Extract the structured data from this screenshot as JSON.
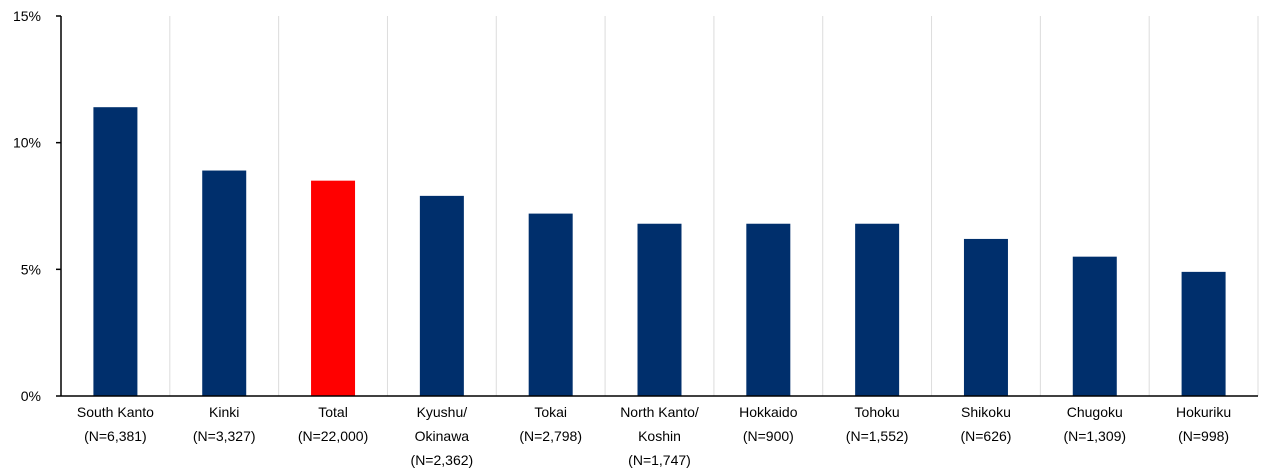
{
  "chart_data": {
    "type": "bar",
    "title": "",
    "xlabel": "",
    "ylabel": "",
    "ylim": [
      0,
      15
    ],
    "yticks": [
      {
        "value": 0,
        "label": "0%"
      },
      {
        "value": 5,
        "label": "5%"
      },
      {
        "value": 10,
        "label": "10%"
      },
      {
        "value": 15,
        "label": "15%"
      }
    ],
    "grid": "vertical category separators",
    "legend": "none",
    "categories": [
      {
        "label_lines": [
          "South Kanto",
          "(N=6,381)"
        ]
      },
      {
        "label_lines": [
          "Kinki",
          "(N=3,327)"
        ]
      },
      {
        "label_lines": [
          "Total",
          "(N=22,000)"
        ]
      },
      {
        "label_lines": [
          "Kyushu/",
          "Okinawa",
          "(N=2,362)"
        ]
      },
      {
        "label_lines": [
          "Tokai",
          "(N=2,798)"
        ]
      },
      {
        "label_lines": [
          "North Kanto/",
          "Koshin",
          "(N=1,747)"
        ]
      },
      {
        "label_lines": [
          "Hokkaido",
          "(N=900)"
        ]
      },
      {
        "label_lines": [
          "Tohoku",
          "(N=1,552)"
        ]
      },
      {
        "label_lines": [
          "Shikoku",
          "(N=626)"
        ]
      },
      {
        "label_lines": [
          "Chugoku",
          "(N=1,309)"
        ]
      },
      {
        "label_lines": [
          "Hokuriku",
          "(N=998)"
        ]
      }
    ],
    "values": [
      11.4,
      8.9,
      8.5,
      7.9,
      7.2,
      6.8,
      6.8,
      6.8,
      6.2,
      5.5,
      4.9
    ],
    "highlight_index": 2,
    "colors": {
      "bar": "#002f6c",
      "highlight": "#ff0000",
      "grid": "#dcdcdc",
      "axis": "#000000",
      "text": "#000000"
    }
  }
}
